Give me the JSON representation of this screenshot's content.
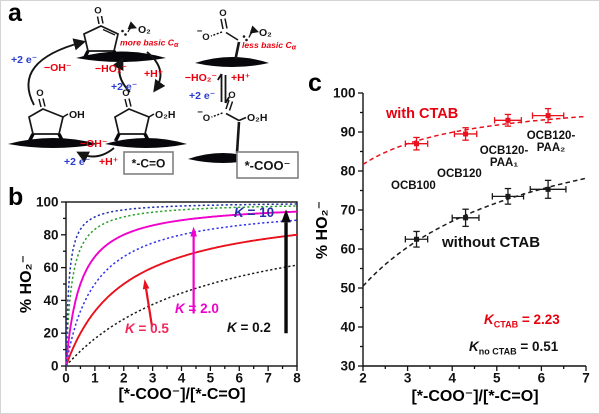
{
  "panel_a": {
    "label": "a",
    "o": "O",
    "o2": "O₂",
    "oh": "OH",
    "o2h": "O₂H",
    "minus_charge": "−",
    "more_basic": "more basic C",
    "less_basic": "less basic C",
    "alpha": "α",
    "plus_2e": "+2 e⁻",
    "minus_oh": "−OH⁻",
    "minus_ho2": "−HO₂⁻",
    "plus_h": "+H⁺",
    "box_ketone": "*-C=O",
    "box_carboxylate": "*-COO⁻"
  },
  "chart_data": [
    {
      "id": "b",
      "panel_label": "b",
      "type": "line",
      "xlabel": "[*-COO⁻]/[*-C=O]",
      "ylabel": "% HO₂⁻",
      "xlim": [
        0,
        8
      ],
      "ylim": [
        0,
        100
      ],
      "xticks": [
        0,
        1,
        2,
        3,
        4,
        5,
        6,
        7,
        8
      ],
      "yticks": [
        0,
        20,
        40,
        60,
        80,
        100
      ],
      "xminor_step": 0.5,
      "yminor_step": 10,
      "frame": true,
      "grid": false,
      "model": "%HO2 = 100*K*x/(1+K*x)",
      "series": [
        {
          "name": "K = 0.2",
          "K": 0.2,
          "color": "#1a1a1a",
          "style": "dashed",
          "width": 1.5
        },
        {
          "name": "K = 0.5",
          "K": 0.5,
          "color": "#e8111d",
          "style": "solid",
          "width": 1.9
        },
        {
          "name": "K = 1",
          "K": 1.0,
          "color": "#3333ee",
          "style": "dashed",
          "width": 1.5
        },
        {
          "name": "K = 2.0",
          "K": 2.0,
          "color": "#f000cc",
          "style": "solid",
          "width": 1.9
        },
        {
          "name": "K = 5",
          "K": 5.0,
          "color": "#27a127",
          "style": "dashed",
          "width": 1.5
        },
        {
          "name": "K = 10",
          "K": 10.0,
          "color": "#2432a8",
          "style": "dashed",
          "width": 1.5
        }
      ],
      "arrows": [
        {
          "from": [
            2.98,
            24
          ],
          "to": [
            2.72,
            53
          ],
          "color": "#e8111d",
          "width": 2.2
        },
        {
          "from": [
            4.42,
            32
          ],
          "to": [
            4.42,
            85
          ],
          "color": "#f000cc",
          "width": 2.2
        },
        {
          "from": [
            7.62,
            20
          ],
          "to": [
            7.62,
            95.5
          ],
          "color": "#0a0a0a",
          "width": 3.4
        }
      ],
      "annotations": [
        {
          "k": "K",
          "rest": " = 0.5",
          "color": "#f0285a"
        },
        {
          "k": "K",
          "rest": " = 2.0",
          "color": "#f000cc"
        },
        {
          "k": "K",
          "rest": " = 0.2",
          "color": "#111111"
        },
        {
          "k": "K",
          "rest": " = 10",
          "color": "#2432a8"
        }
      ]
    },
    {
      "id": "c",
      "panel_label": "c",
      "type": "scatter",
      "xlabel": "[*-COO⁻]/[*-C=O]",
      "ylabel": "% HO₂⁻",
      "xlim": [
        2,
        7
      ],
      "ylim": [
        30,
        100
      ],
      "xticks": [
        2,
        3,
        4,
        5,
        6,
        7
      ],
      "yticks": [
        30,
        40,
        50,
        60,
        70,
        80,
        90,
        100
      ],
      "xminor_step": 0.5,
      "yminor_step": 5,
      "frame": false,
      "grid": false,
      "fit_model": "%HO2 = 100*K*x/(1+K*x)",
      "series": [
        {
          "name": "with CTAB",
          "color": "#e8111d",
          "K": 2.23,
          "style": "dashed",
          "width": 1.5,
          "x": [
            3.2,
            4.3,
            5.25,
            6.15
          ],
          "y": [
            87,
            89.5,
            93,
            94.2
          ],
          "xerr": [
            0.25,
            0.25,
            0.3,
            0.35
          ],
          "yerr": [
            1.6,
            1.6,
            1.5,
            1.8
          ]
        },
        {
          "name": "without CTAB",
          "color": "#1a1a1a",
          "K": 0.51,
          "style": "dashed",
          "width": 1.5,
          "x": [
            3.2,
            4.3,
            5.25,
            6.15
          ],
          "y": [
            62.5,
            68,
            73.5,
            75.3
          ],
          "xerr": [
            0.25,
            0.3,
            0.35,
            0.4
          ],
          "yerr": [
            2,
            2.2,
            2,
            2.3
          ]
        }
      ],
      "point_labels": [
        "OCB100",
        "OCB120",
        "OCB120-PAA₁",
        "OCB120-PAA₂"
      ],
      "point_labels_display": [
        {
          "l1": "OCB100"
        },
        {
          "l1": "OCB120"
        },
        {
          "l1": "OCB120-",
          "l2": "PAA₁"
        },
        {
          "l1": "OCB120-",
          "l2": "PAA₂"
        }
      ],
      "k_values": [
        {
          "k": "K",
          "sub": "CTAB",
          "rest": " = 2.23",
          "color": "#e8111d"
        },
        {
          "k": "K",
          "sub": "no CTAB",
          "rest": " = 0.51",
          "color": "#111111"
        }
      ]
    }
  ]
}
